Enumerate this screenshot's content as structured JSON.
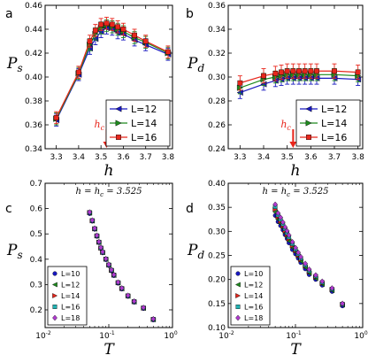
{
  "chart_data": [
    {
      "panel": "a",
      "type": "line",
      "ylabel": "P",
      "ylabel_sub": "s",
      "xlabel": "h",
      "xlim": [
        3.25,
        3.82
      ],
      "ylim": [
        0.34,
        0.46
      ],
      "xticks": [
        "3.3",
        "3.4",
        "3.5",
        "3.6",
        "3.7",
        "3.8"
      ],
      "yticks": [
        "0.34",
        "0.36",
        "0.38",
        "0.40",
        "0.42",
        "0.44",
        "0.46"
      ],
      "x": [
        3.3,
        3.4,
        3.45,
        3.475,
        3.5,
        3.525,
        3.55,
        3.575,
        3.6,
        3.65,
        3.7,
        3.8
      ],
      "series": [
        {
          "name": "L=12",
          "color": "#1818c0",
          "marker": "triangle-left",
          "values": [
            0.364,
            0.402,
            0.424,
            0.432,
            0.438,
            0.441,
            0.44,
            0.437,
            0.436,
            0.431,
            0.427,
            0.419
          ],
          "err": 0.005
        },
        {
          "name": "L=14",
          "color": "#1e8a1e",
          "marker": "triangle-right",
          "values": [
            0.365,
            0.403,
            0.427,
            0.436,
            0.441,
            0.443,
            0.442,
            0.44,
            0.438,
            0.433,
            0.429,
            0.42
          ],
          "err": 0.005
        },
        {
          "name": "L=16",
          "color": "#e8261c",
          "marker": "square",
          "values": [
            0.366,
            0.404,
            0.43,
            0.439,
            0.444,
            0.445,
            0.444,
            0.442,
            0.44,
            0.435,
            0.43,
            0.421
          ],
          "err": 0.005
        }
      ],
      "hc_label": "h",
      "hc_label_sub": "c",
      "hc_value": 3.525,
      "legend": "bottom-right"
    },
    {
      "panel": "b",
      "type": "line",
      "ylabel": "P",
      "ylabel_sub": "d",
      "xlabel": "h",
      "xlim": [
        3.25,
        3.82
      ],
      "ylim": [
        0.24,
        0.36
      ],
      "xticks": [
        "3.3",
        "3.4",
        "3.5",
        "3.6",
        "3.7",
        "3.8"
      ],
      "yticks": [
        "0.24",
        "0.26",
        "0.28",
        "0.30",
        "0.32",
        "0.34",
        "0.36"
      ],
      "x": [
        3.3,
        3.4,
        3.45,
        3.475,
        3.5,
        3.525,
        3.55,
        3.575,
        3.6,
        3.625,
        3.7,
        3.8
      ],
      "series": [
        {
          "name": "L=12",
          "color": "#1818c0",
          "marker": "triangle-left",
          "values": [
            0.287,
            0.294,
            0.297,
            0.298,
            0.299,
            0.299,
            0.299,
            0.299,
            0.299,
            0.299,
            0.299,
            0.298
          ],
          "err": 0.005
        },
        {
          "name": "L=14",
          "color": "#1e8a1e",
          "marker": "triangle-right",
          "values": [
            0.291,
            0.298,
            0.3,
            0.301,
            0.302,
            0.302,
            0.302,
            0.302,
            0.302,
            0.302,
            0.302,
            0.301
          ],
          "err": 0.005
        },
        {
          "name": "L=16",
          "color": "#e8261c",
          "marker": "square",
          "values": [
            0.295,
            0.301,
            0.303,
            0.304,
            0.305,
            0.305,
            0.305,
            0.305,
            0.305,
            0.305,
            0.305,
            0.304
          ],
          "err": 0.006
        }
      ],
      "hc_label": "h",
      "hc_label_sub": "c",
      "hc_value": 3.525,
      "legend": "bottom-right"
    },
    {
      "panel": "c",
      "type": "scatter",
      "xscale": "log",
      "ylabel": "P",
      "ylabel_sub": "s",
      "xlabel": "T",
      "xlim": [
        0.01,
        1
      ],
      "ylim": [
        0.13,
        0.7
      ],
      "xticks": [
        "10",
        "10",
        "10"
      ],
      "xtick_exponents": [
        "-2",
        "-1",
        "0"
      ],
      "yticks": [
        "0.2",
        "0.3",
        "0.4",
        "0.5",
        "0.6",
        "0.7"
      ],
      "annotation": "h = h",
      "annotation_sub": "c",
      "annotation_value": " = 3.525",
      "x": [
        0.05,
        0.055,
        0.06,
        0.065,
        0.07,
        0.075,
        0.08,
        0.09,
        0.1,
        0.11,
        0.12,
        0.14,
        0.16,
        0.2,
        0.25,
        0.35,
        0.5
      ],
      "series": [
        {
          "name": "L=10",
          "color": "#1818c0",
          "marker": "circle",
          "values": [
            0.58,
            0.55,
            0.518,
            0.49,
            0.465,
            0.442,
            0.425,
            0.398,
            0.375,
            0.354,
            0.335,
            0.305,
            0.282,
            0.253,
            0.23,
            0.205,
            0.16
          ]
        },
        {
          "name": "L=12",
          "color": "#1e8a1e",
          "marker": "triangle-left",
          "values": [
            0.582,
            0.551,
            0.519,
            0.491,
            0.466,
            0.443,
            0.426,
            0.399,
            0.376,
            0.355,
            0.336,
            0.306,
            0.283,
            0.254,
            0.231,
            0.206,
            0.161
          ]
        },
        {
          "name": "L=14",
          "color": "#e8261c",
          "marker": "triangle-right",
          "values": [
            0.584,
            0.552,
            0.52,
            0.492,
            0.467,
            0.444,
            0.427,
            0.4,
            0.377,
            0.356,
            0.337,
            0.307,
            0.284,
            0.255,
            0.232,
            0.207,
            0.162
          ]
        },
        {
          "name": "L=16",
          "color": "#22b3b3",
          "marker": "square",
          "values": [
            0.585,
            0.553,
            0.521,
            0.493,
            0.468,
            0.445,
            0.428,
            0.401,
            0.378,
            0.357,
            0.338,
            0.308,
            0.285,
            0.256,
            0.233,
            0.208,
            0.163
          ]
        },
        {
          "name": "L=18",
          "color": "#b03ad0",
          "marker": "diamond",
          "values": [
            0.586,
            0.554,
            0.522,
            0.494,
            0.469,
            0.446,
            0.429,
            0.402,
            0.379,
            0.358,
            0.339,
            0.309,
            0.286,
            0.257,
            0.234,
            0.209,
            0.164
          ]
        }
      ],
      "legend": "bottom-left"
    },
    {
      "panel": "d",
      "type": "scatter",
      "xscale": "log",
      "ylabel": "P",
      "ylabel_sub": "d",
      "xlabel": "T",
      "xlim": [
        0.01,
        1
      ],
      "ylim": [
        0.1,
        0.4
      ],
      "xticks": [
        "10",
        "10",
        "10"
      ],
      "xtick_exponents": [
        "-2",
        "-1",
        "0"
      ],
      "yticks": [
        "0.10",
        "0.15",
        "0.20",
        "0.25",
        "0.30",
        "0.35",
        "0.40"
      ],
      "annotation": "h = h",
      "annotation_sub": "c",
      "annotation_value": " = 3.525",
      "x": [
        0.05,
        0.055,
        0.06,
        0.065,
        0.07,
        0.075,
        0.08,
        0.09,
        0.1,
        0.11,
        0.12,
        0.14,
        0.16,
        0.2,
        0.25,
        0.35,
        0.5
      ],
      "series": [
        {
          "name": "L=10",
          "color": "#1818c0",
          "marker": "circle",
          "values": [
            0.333,
            0.32,
            0.312,
            0.303,
            0.293,
            0.285,
            0.276,
            0.262,
            0.253,
            0.244,
            0.235,
            0.222,
            0.21,
            0.2,
            0.188,
            0.175,
            0.145
          ]
        },
        {
          "name": "L=12",
          "color": "#1e8a1e",
          "marker": "triangle-left",
          "values": [
            0.34,
            0.325,
            0.316,
            0.307,
            0.297,
            0.289,
            0.28,
            0.266,
            0.257,
            0.247,
            0.238,
            0.225,
            0.213,
            0.202,
            0.19,
            0.177,
            0.147
          ]
        },
        {
          "name": "L=14",
          "color": "#e8261c",
          "marker": "triangle-right",
          "values": [
            0.346,
            0.33,
            0.321,
            0.311,
            0.301,
            0.293,
            0.284,
            0.27,
            0.26,
            0.25,
            0.241,
            0.228,
            0.216,
            0.205,
            0.192,
            0.179,
            0.148
          ]
        },
        {
          "name": "L=16",
          "color": "#22b3b3",
          "marker": "square",
          "values": [
            0.351,
            0.334,
            0.325,
            0.315,
            0.305,
            0.297,
            0.288,
            0.274,
            0.263,
            0.253,
            0.244,
            0.23,
            0.218,
            0.207,
            0.194,
            0.18,
            0.149
          ]
        },
        {
          "name": "L=18",
          "color": "#b03ad0",
          "marker": "diamond",
          "values": [
            0.356,
            0.338,
            0.329,
            0.319,
            0.309,
            0.301,
            0.292,
            0.278,
            0.266,
            0.256,
            0.247,
            0.233,
            0.221,
            0.209,
            0.196,
            0.182,
            0.15
          ]
        }
      ],
      "legend": "bottom-left"
    }
  ]
}
